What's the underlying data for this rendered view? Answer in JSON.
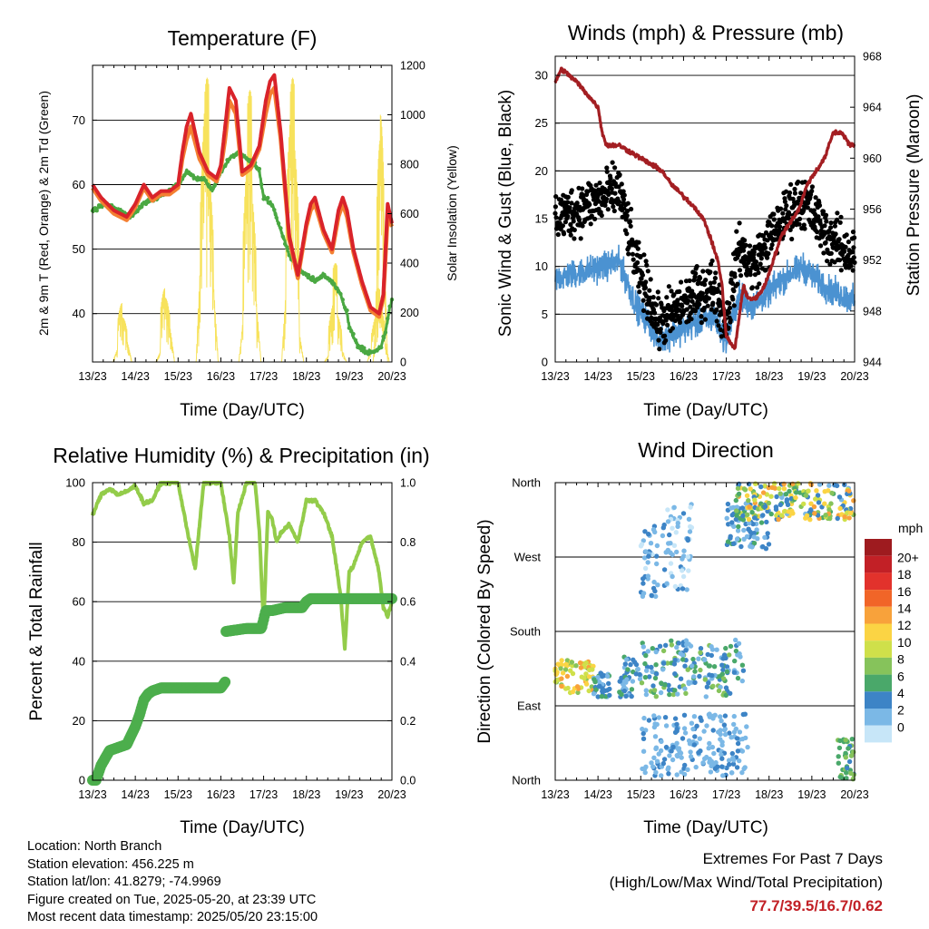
{
  "x_tick_labels": [
    "13/23",
    "14/23",
    "15/23",
    "16/23",
    "17/23",
    "18/23",
    "19/23",
    "20/23"
  ],
  "x_axis_title": "Time (Day/UTC)",
  "colors": {
    "temp_2m": "#d9232a",
    "temp_9m": "#f47f31",
    "dewpoint": "#4aa842",
    "solar": "#f7e25c",
    "wind_sonic": "#4b92d1",
    "wind_gust": "#000000",
    "pressure": "#a31e22",
    "rh": "#93cc4a",
    "precip": "#4cae4c",
    "extremes": "#c22026"
  },
  "chart_data": [
    {
      "type": "line",
      "title": "Temperature (F)",
      "xlabel": "Time (Day/UTC)",
      "ylabel": "2m & 9m T (Red, Orange) & 2m Td (Green)",
      "y2label": "Solar Insolation (Yellow)",
      "x_range_days": [
        0,
        7
      ],
      "ylim": [
        32.5,
        78.5
      ],
      "y_ticks": [
        "40",
        "50",
        "60",
        "70"
      ],
      "y2lim": [
        0,
        1200
      ],
      "y2_ticks": [
        "0",
        "200",
        "400",
        "600",
        "800",
        "1000",
        "1200"
      ],
      "grid": true,
      "series": [
        {
          "key": "temp_2m",
          "x": [
            0,
            0.2,
            0.5,
            0.8,
            1.0,
            1.2,
            1.4,
            1.6,
            1.8,
            2.0,
            2.1,
            2.2,
            2.3,
            2.5,
            2.7,
            2.9,
            3.0,
            3.1,
            3.2,
            3.35,
            3.5,
            3.7,
            3.9,
            4.05,
            4.15,
            4.25,
            4.4,
            4.6,
            4.8,
            4.9,
            5.0,
            5.1,
            5.2,
            5.4,
            5.6,
            5.75,
            5.85,
            5.95,
            6.1,
            6.3,
            6.5,
            6.7,
            6.8,
            6.9,
            7.0
          ],
          "y": [
            60,
            58,
            56,
            55,
            57,
            60,
            58,
            59,
            59,
            60,
            65,
            69,
            71,
            65,
            62,
            61,
            63,
            69,
            75,
            73,
            62,
            63,
            66,
            73,
            76,
            77,
            68,
            52,
            46,
            50,
            54,
            57,
            58,
            53,
            50,
            56,
            58,
            56,
            50,
            45,
            41,
            40,
            43,
            57,
            54
          ]
        },
        {
          "key": "temp_9m",
          "x": [
            0,
            0.2,
            0.5,
            0.8,
            1.0,
            1.2,
            1.4,
            1.6,
            1.8,
            2.0,
            2.1,
            2.2,
            2.3,
            2.5,
            2.7,
            2.9,
            3.0,
            3.1,
            3.2,
            3.35,
            3.5,
            3.7,
            3.9,
            4.05,
            4.15,
            4.25,
            4.4,
            4.6,
            4.8,
            4.9,
            5.0,
            5.1,
            5.2,
            5.4,
            5.6,
            5.75,
            5.85,
            5.95,
            6.1,
            6.3,
            6.5,
            6.7,
            6.8,
            6.9,
            7.0
          ],
          "y": [
            59.5,
            57.5,
            55.5,
            54.5,
            56.5,
            59.5,
            57.5,
            58.5,
            58.5,
            59.5,
            64,
            67,
            69,
            64,
            61.5,
            60.5,
            62.5,
            67,
            73,
            71,
            61.5,
            62.5,
            65.5,
            71,
            74,
            75,
            67,
            51.5,
            45.5,
            49.5,
            53.5,
            56,
            57,
            52.5,
            49.5,
            55,
            57,
            55,
            49.5,
            44.5,
            40.5,
            39.5,
            42.5,
            55,
            53.5
          ]
        },
        {
          "key": "dewpoint",
          "x": [
            0,
            0.3,
            0.6,
            0.9,
            1.2,
            1.5,
            1.8,
            2.0,
            2.2,
            2.4,
            2.6,
            2.8,
            3.0,
            3.2,
            3.4,
            3.6,
            3.8,
            3.9,
            4.0,
            4.2,
            4.4,
            4.6,
            4.8,
            5.0,
            5.2,
            5.4,
            5.6,
            5.8,
            5.95,
            6.0,
            6.2,
            6.4,
            6.6,
            6.75,
            6.85,
            6.95,
            7.0
          ],
          "y": [
            56,
            57,
            56,
            55,
            57,
            58,
            59,
            60,
            62,
            61,
            61,
            59,
            62,
            64,
            65,
            64,
            63,
            62,
            58,
            57,
            53,
            49,
            47,
            46,
            45,
            46,
            45,
            43,
            40,
            38,
            35,
            34,
            34,
            35,
            37,
            41,
            42
          ]
        }
      ],
      "solar_series": {
        "key": "solar",
        "y_axis": "secondary",
        "days": [
          {
            "start": 0.48,
            "end": 0.92,
            "peaks": [
              80,
              240,
              180,
              120
            ]
          },
          {
            "start": 1.48,
            "end": 1.92,
            "peaks": [
              60,
              300,
              260,
              200
            ]
          },
          {
            "start": 2.42,
            "end": 2.94,
            "peaks": [
              700,
              1100,
              1150,
              800,
              500
            ]
          },
          {
            "start": 3.42,
            "end": 3.94,
            "peaks": [
              300,
              900,
              1100,
              700,
              400
            ]
          },
          {
            "start": 4.42,
            "end": 4.94,
            "peaks": [
              500,
              1050,
              1150,
              900,
              200
            ]
          },
          {
            "start": 5.42,
            "end": 5.94,
            "peaks": [
              50,
              250,
              400,
              200,
              80
            ]
          },
          {
            "start": 6.42,
            "end": 6.94,
            "peaks": [
              100,
              200,
              300,
              250,
              150
            ]
          },
          {
            "start": 6.56,
            "end": 6.9,
            "peaks": [
              300,
              900,
              1000,
              700
            ]
          }
        ]
      }
    },
    {
      "type": "scatter",
      "title": "Winds (mph) & Pressure (mb)",
      "xlabel": "Time (Day/UTC)",
      "ylabel": "Sonic Wind & Gust (Blue, Black)",
      "y2label": "Station Pressure (Maroon)",
      "x_range_days": [
        0,
        7
      ],
      "ylim": [
        0,
        32
      ],
      "y_ticks": [
        "0",
        "5",
        "10",
        "15",
        "20",
        "25",
        "30"
      ],
      "y2lim": [
        944,
        968
      ],
      "y2_ticks": [
        "944",
        "948",
        "952",
        "956",
        "960",
        "964",
        "968"
      ],
      "grid": true,
      "wind_profile": {
        "x": [
          0,
          0.5,
          1.0,
          1.5,
          1.9,
          2.2,
          2.4,
          2.7,
          3.0,
          3.3,
          3.7,
          4.0,
          4.3,
          4.6,
          4.9,
          5.2,
          5.5,
          5.8,
          6.1,
          6.4,
          6.7,
          7.0
        ],
        "y": [
          15,
          16,
          17,
          18,
          10,
          7,
          4,
          5,
          6,
          7,
          8,
          4,
          12,
          10,
          12,
          14,
          16,
          17,
          15,
          13,
          12,
          11
        ]
      },
      "pressure": {
        "key": "pressure",
        "x": [
          0,
          0.15,
          0.5,
          1.0,
          1.1,
          1.2,
          1.5,
          2.0,
          2.5,
          2.7,
          3.0,
          3.3,
          3.5,
          3.8,
          3.9,
          4.0,
          4.2,
          4.4,
          4.5,
          4.7,
          4.9,
          5.1,
          5.3,
          5.5,
          5.7,
          5.9,
          6.1,
          6.3,
          6.5,
          6.7,
          6.9,
          7.0
        ],
        "y": [
          966,
          967,
          966,
          964,
          962,
          961,
          961,
          960,
          959,
          958,
          957,
          956,
          955,
          952,
          950,
          946,
          945,
          950,
          949,
          949,
          950,
          952,
          954,
          955,
          956,
          958,
          959,
          960,
          962,
          962,
          961,
          961
        ]
      }
    },
    {
      "type": "line",
      "title": "Relative Humidity (%) & Precipitation (in)",
      "xlabel": "Time (Day/UTC)",
      "ylabel": "Percent & Total Rainfall",
      "x_range_days": [
        0,
        7
      ],
      "ylim": [
        0,
        100
      ],
      "y_ticks": [
        "0",
        "20",
        "40",
        "60",
        "80",
        "100"
      ],
      "y2lim": [
        0,
        1.0
      ],
      "y2_ticks": [
        "0.0",
        "0.2",
        "0.4",
        "0.6",
        "0.8",
        "1.0"
      ],
      "grid": true,
      "series": [
        {
          "key": "rh",
          "name": "",
          "x": [
            0,
            0.2,
            0.4,
            0.6,
            0.8,
            1.0,
            1.2,
            1.4,
            1.6,
            1.8,
            2.0,
            2.2,
            2.4,
            2.6,
            2.8,
            3.0,
            3.2,
            3.3,
            3.4,
            3.6,
            3.7,
            3.8,
            3.9,
            4.0,
            4.1,
            4.2,
            4.3,
            4.4,
            4.6,
            4.8,
            5.0,
            5.2,
            5.4,
            5.6,
            5.8,
            5.9,
            6.0,
            6.1,
            6.3,
            6.5,
            6.7,
            6.8,
            6.9,
            7.0
          ],
          "y": [
            89,
            96,
            98,
            96,
            97,
            99,
            93,
            94,
            100,
            100,
            100,
            85,
            71,
            100,
            100,
            100,
            82,
            66,
            90,
            100,
            100,
            100,
            84,
            52,
            90,
            88,
            80,
            83,
            86,
            80,
            94,
            94,
            90,
            82,
            62,
            44,
            70,
            72,
            80,
            82,
            70,
            58,
            55,
            60
          ]
        },
        {
          "key": "precip",
          "name": "",
          "y_axis": "secondary",
          "x": [
            0,
            0.08,
            0.2,
            0.4,
            0.6,
            0.8,
            1.0,
            1.1,
            1.2,
            1.3,
            1.4,
            1.6,
            2.0,
            2.5,
            3.0,
            3.1,
            3.12,
            3.6,
            3.95,
            4.0,
            4.05,
            4.2,
            4.5,
            4.9,
            5.0,
            5.1,
            5.5,
            6.0,
            6.5,
            7.0
          ],
          "y": [
            0,
            0,
            0.05,
            0.1,
            0.11,
            0.12,
            0.18,
            0.22,
            0.27,
            0.29,
            0.3,
            0.31,
            0.31,
            0.31,
            0.31,
            0.33,
            0.5,
            0.51,
            0.51,
            0.54,
            0.57,
            0.57,
            0.58,
            0.58,
            0.6,
            0.61,
            0.61,
            0.61,
            0.61,
            0.61
          ]
        }
      ]
    },
    {
      "type": "scatter",
      "title": "Wind Direction",
      "xlabel": "Time (Day/UTC)",
      "ylabel": "Direction (Colored By Speed)",
      "x_range_days": [
        0,
        7
      ],
      "ylim": [
        0,
        360
      ],
      "y_ticks": [
        "North",
        "East",
        "South",
        "West",
        "North"
      ],
      "legend": {
        "title": "mph",
        "labels": [
          "20+",
          "18",
          "16",
          "14",
          "12",
          "10",
          "8",
          "6",
          "4",
          "2",
          "0"
        ],
        "colors": [
          "#9e1b1f",
          "#c22026",
          "#e2322c",
          "#f16528",
          "#f8a23b",
          "#fbd444",
          "#cfe04a",
          "#86c35b",
          "#4aa86a",
          "#3d84c6",
          "#7bb8e6",
          "#c7e6f8"
        ]
      },
      "clusters": [
        {
          "x": [
            0,
            0.9
          ],
          "y": [
            105,
            145
          ],
          "speed": [
            8,
            14
          ]
        },
        {
          "x": [
            0.9,
            1.3
          ],
          "y": [
            100,
            130
          ],
          "speed": [
            2,
            6
          ]
        },
        {
          "x": [
            1.5,
            2.0
          ],
          "y": [
            100,
            150
          ],
          "speed": [
            2,
            6
          ]
        },
        {
          "x": [
            2.0,
            2.4
          ],
          "y": [
            220,
            310
          ],
          "speed": [
            0,
            4
          ]
        },
        {
          "x": [
            2.0,
            4.4
          ],
          "y": [
            100,
            170
          ],
          "speed": [
            1,
            8
          ]
        },
        {
          "x": [
            2.5,
            3.2
          ],
          "y": [
            230,
            340
          ],
          "speed": [
            0,
            4
          ]
        },
        {
          "x": [
            2.0,
            4.5
          ],
          "y": [
            5,
            80
          ],
          "speed": [
            1,
            4
          ]
        },
        {
          "x": [
            4.0,
            5.0
          ],
          "y": [
            280,
            335
          ],
          "speed": [
            1,
            6
          ]
        },
        {
          "x": [
            4.2,
            7.0
          ],
          "y": [
            315,
            360
          ],
          "speed": [
            2,
            14
          ]
        },
        {
          "x": [
            6.6,
            7.0
          ],
          "y": [
            0,
            50
          ],
          "speed": [
            4,
            8
          ]
        }
      ]
    }
  ],
  "info": {
    "location": "Location: North Branch",
    "elevation": "Station elevation: 456.225 m",
    "latlon": "Station lat/lon: 41.8279; -74.9969",
    "created": "Figure created on Tue, 2025-05-20, at 23:39 UTC",
    "latest": "Most recent data timestamp: 2025/05/20 23:15:00"
  },
  "extremes": {
    "title": "Extremes For Past 7 Days",
    "subtitle": "(High/Low/Max Wind/Total Precipitation)",
    "values": "77.7/39.5/16.7/0.62"
  }
}
